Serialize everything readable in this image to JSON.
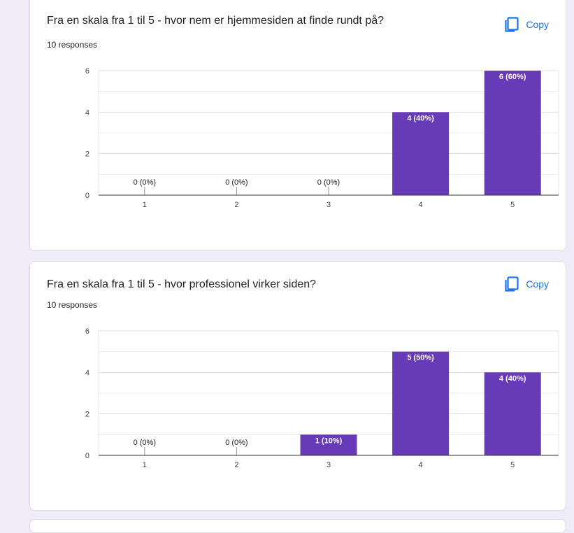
{
  "colors": {
    "bar": "#673ab7",
    "accent": "#1a73e8",
    "background": "#f0ebf8"
  },
  "cards": [
    {
      "question": "Fra en skala fra 1 til 5 - hvor nem er hjemmesiden at finde rundt på?",
      "responses": "10 responses",
      "copy_label": "Copy",
      "copy_icon": "copy-icon"
    },
    {
      "question": "Fra en skala fra 1 til 5 - hvor professionel virker siden?",
      "responses": "10 responses",
      "copy_label": "Copy",
      "copy_icon": "copy-icon"
    }
  ],
  "chart_data": [
    {
      "type": "bar",
      "categories": [
        "1",
        "2",
        "3",
        "4",
        "5"
      ],
      "values": [
        0,
        0,
        0,
        4,
        6
      ],
      "labels": [
        "0 (0%)",
        "0 (0%)",
        "0 (0%)",
        "4 (40%)",
        "6 (60%)"
      ],
      "yticks": [
        0,
        2,
        4,
        6
      ],
      "ylim": [
        0,
        6
      ],
      "grid": true
    },
    {
      "type": "bar",
      "categories": [
        "1",
        "2",
        "3",
        "4",
        "5"
      ],
      "values": [
        0,
        0,
        1,
        5,
        4
      ],
      "labels": [
        "0 (0%)",
        "0 (0%)",
        "1 (10%)",
        "5 (50%)",
        "4 (40%)"
      ],
      "yticks": [
        0,
        2,
        4,
        6
      ],
      "ylim": [
        0,
        6
      ],
      "grid": true
    }
  ]
}
